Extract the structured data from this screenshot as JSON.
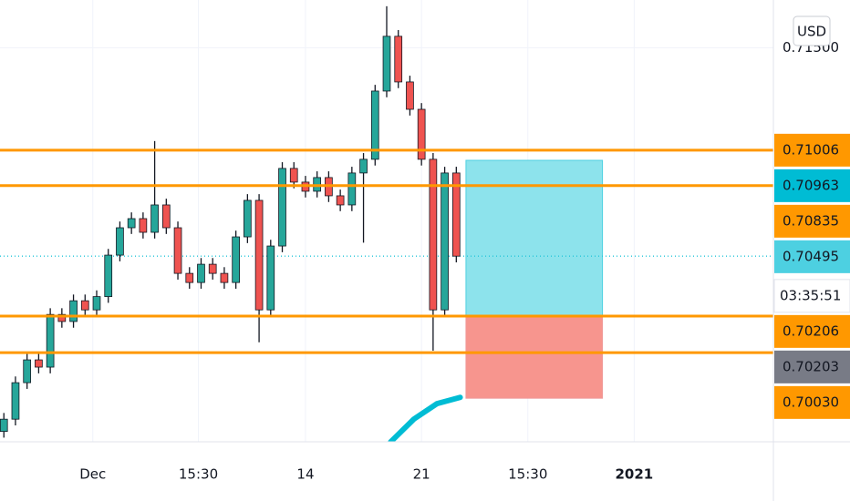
{
  "chart_data": {
    "type": "candlestick",
    "currency": "USD",
    "countdown": "03:35:51",
    "x": [
      1,
      4,
      7,
      10,
      13,
      16,
      19,
      22,
      25,
      28,
      31,
      34,
      37,
      40,
      43,
      46,
      49,
      52,
      55,
      58,
      61,
      64,
      67,
      70,
      73,
      76,
      79,
      82,
      85,
      88,
      91,
      94,
      97,
      100,
      103,
      106,
      109,
      112,
      115,
      118
    ],
    "open": [
      0.6965,
      0.69709,
      0.69885,
      0.69995,
      0.6996,
      0.70214,
      0.7018,
      0.7028,
      0.70236,
      0.703,
      0.705,
      0.70632,
      0.70676,
      0.7061,
      0.70742,
      0.70632,
      0.70412,
      0.70368,
      0.70456,
      0.70412,
      0.70368,
      0.70588,
      0.70764,
      0.70236,
      0.70544,
      0.70918,
      0.70852,
      0.70808,
      0.70874,
      0.70786,
      0.70742,
      0.70896,
      0.70962,
      0.71291,
      0.71555,
      0.71335,
      0.71203,
      0.70962,
      0.70236,
      0.70896
    ],
    "high": [
      0.69739,
      0.69915,
      0.70025,
      0.70025,
      0.70244,
      0.70244,
      0.7031,
      0.7031,
      0.7033,
      0.7053,
      0.70662,
      0.70706,
      0.70706,
      0.7105,
      0.70772,
      0.70662,
      0.70442,
      0.70486,
      0.70486,
      0.70442,
      0.70618,
      0.70794,
      0.70794,
      0.70574,
      0.70948,
      0.70948,
      0.70882,
      0.70904,
      0.70904,
      0.70816,
      0.70926,
      0.70992,
      0.71321,
      0.717,
      0.71585,
      0.71365,
      0.71233,
      0.70992,
      0.70926,
      0.70926
    ],
    "low": [
      0.6962,
      0.69679,
      0.69855,
      0.6993,
      0.6993,
      0.7015,
      0.7015,
      0.70206,
      0.70206,
      0.7027,
      0.7047,
      0.70602,
      0.7058,
      0.7058,
      0.70602,
      0.70382,
      0.70338,
      0.70338,
      0.70382,
      0.70338,
      0.70338,
      0.70558,
      0.7008,
      0.70206,
      0.70514,
      0.70822,
      0.70778,
      0.70778,
      0.70756,
      0.70712,
      0.70712,
      0.7056,
      0.70932,
      0.71261,
      0.71305,
      0.71173,
      0.70932,
      0.70039,
      0.70206,
      0.70465
    ],
    "close": [
      0.69709,
      0.69885,
      0.69995,
      0.6996,
      0.70214,
      0.7018,
      0.7028,
      0.70236,
      0.703,
      0.705,
      0.70632,
      0.70676,
      0.7061,
      0.70742,
      0.70632,
      0.70412,
      0.70368,
      0.70456,
      0.70412,
      0.70368,
      0.70588,
      0.70764,
      0.70236,
      0.70544,
      0.70918,
      0.70852,
      0.70808,
      0.70874,
      0.70786,
      0.70742,
      0.70896,
      0.70962,
      0.71291,
      0.71555,
      0.71335,
      0.71203,
      0.70962,
      0.70236,
      0.70896,
      0.70495
    ],
    "up_color": "#26a69a",
    "down_color": "#ef5350",
    "xlim": [
      0,
      200
    ],
    "ylim": [
      0.696,
      0.7173
    ],
    "xticks": [
      {
        "value": 24,
        "label": "Dec"
      },
      {
        "value": 51.3,
        "label": "15:30"
      },
      {
        "value": 79,
        "label": "14"
      },
      {
        "value": 109,
        "label": "21"
      },
      {
        "value": 136.5,
        "label": "15:30"
      },
      {
        "value": 164,
        "label": "2021"
      }
    ],
    "yticks": [
      {
        "value": 0.715,
        "label": "0.71500"
      }
    ],
    "levels": {
      "values": [
        0.71006,
        0.70835,
        0.70206,
        0.7003
      ],
      "color": "#ff9800"
    },
    "last_price": 0.70495,
    "last_price_color": "#26c6da",
    "position": {
      "x_start": 120.5,
      "x_end": 155.8,
      "target": 0.70957,
      "entry": 0.70206,
      "stop": 0.6981,
      "profit_color": "#8de3ec",
      "loss_color": "#f7958e"
    },
    "moving_average": {
      "x": [
        101,
        107,
        113,
        119
      ],
      "values": [
        0.69599,
        0.69709,
        0.69784,
        0.69814
      ],
      "color": "#00bcd4"
    },
    "price_labels": [
      {
        "value": 0.71006,
        "label": "0.71006",
        "color": "#ff9800",
        "text_color": "#131722"
      },
      {
        "value": 0.70963,
        "label": "0.70963",
        "color": "#00bcd4",
        "text_color": "#131722"
      },
      {
        "value": 0.70835,
        "label": "0.70835",
        "color": "#ff9800",
        "text_color": "#131722"
      },
      {
        "value": 0.70495,
        "label": "0.70495",
        "color": "#4dd0e1",
        "text_color": "#131722"
      },
      {
        "value": 0.70206,
        "label": "0.70206",
        "color": "#ff9800",
        "text_color": "#131722"
      },
      {
        "value": 0.70203,
        "label": "0.70203",
        "color": "#787b86",
        "text_color": "#ffffff"
      },
      {
        "value": 0.7003,
        "label": "0.70030",
        "color": "#ff9800",
        "text_color": "#131722"
      }
    ]
  }
}
